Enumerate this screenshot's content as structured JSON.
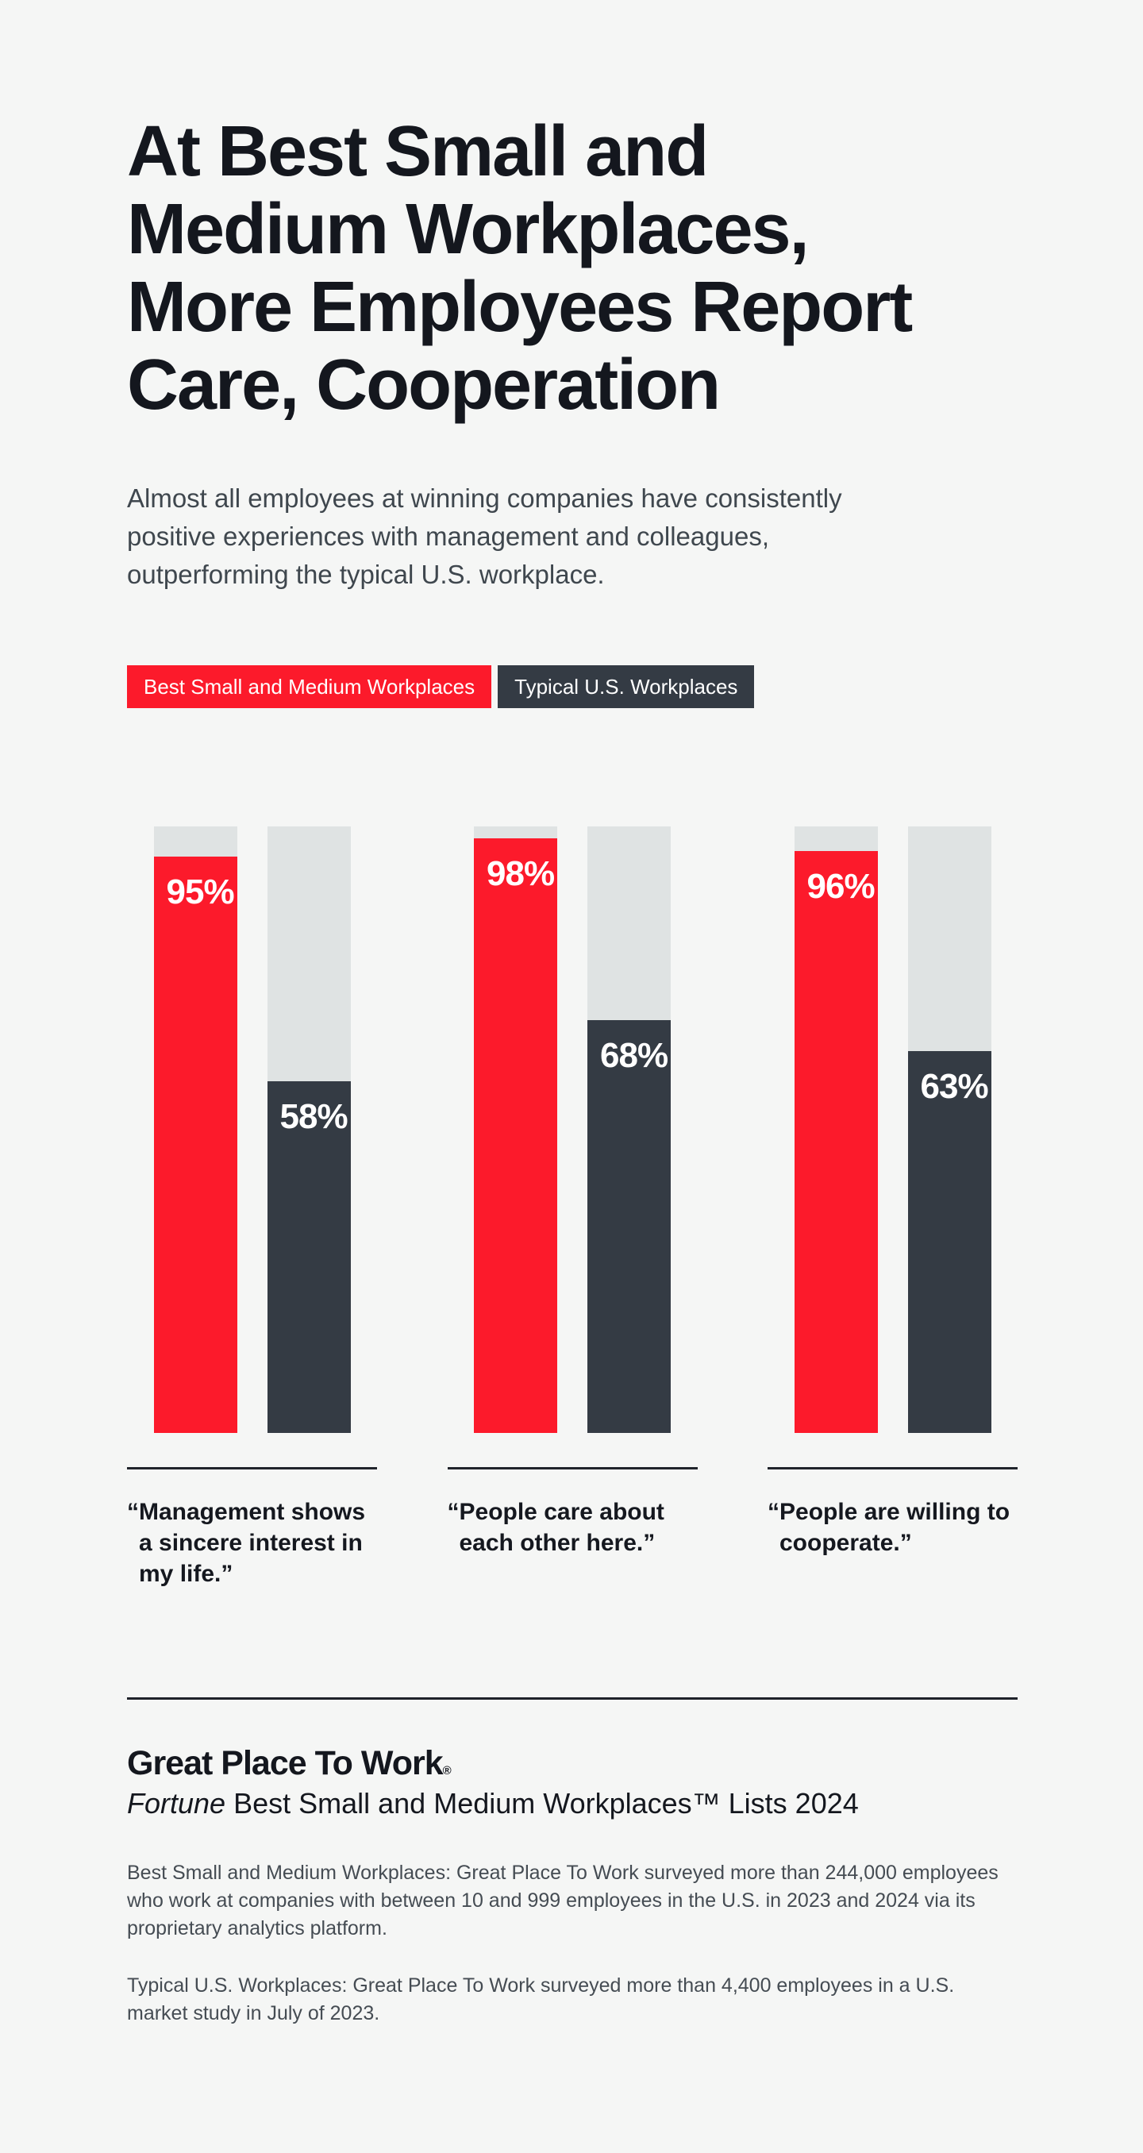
{
  "page": {
    "background": "#F5F6F5",
    "text_dark": "#14171E",
    "text_gray": "#454C53"
  },
  "header": {
    "title": "At Best Small and\nMedium Workplaces,\nMore Employees Report\nCare, Cooperation",
    "subtitle": "Almost all employees at winning companies have consistently\npositive experiences with management and colleagues,\noutperforming the typical U.S. workplace."
  },
  "legend": [
    {
      "label": "Best Small and Medium Workplaces",
      "color": "#FC1A2B"
    },
    {
      "label": "Typical U.S. Workplaces",
      "color": "#343B44"
    }
  ],
  "chart_data": {
    "type": "bar",
    "categories": [
      "“Management shows a sincere interest in my life.”",
      "“People care about each other here.”",
      "“People are willing to cooperate.”"
    ],
    "series": [
      {
        "name": "Best Small and Medium Workplaces",
        "color": "#FC1A2B",
        "values": [
          95,
          98,
          96
        ]
      },
      {
        "name": "Typical U.S. Workplaces",
        "color": "#343B44",
        "values": [
          58,
          68,
          63
        ]
      }
    ],
    "value_suffix": "%",
    "ylim": [
      0,
      100
    ],
    "grid": false,
    "legend_position": "top",
    "track_color": "#DFE3E3",
    "title": "At Best Small and Medium Workplaces, More Employees Report Care, Cooperation"
  },
  "display": {
    "wrapped_categories": [
      "“Management shows\na sincere interest in\nmy life.”",
      "“People care about\neach other here.”",
      "“People are willing to\ncooperate.”"
    ]
  },
  "footer": {
    "logo": "Great Place To Work",
    "logo_reg": "®",
    "fortune": "Fortune",
    "list_suffix": " Best Small and Medium Workplaces™ Lists 2024",
    "note1": "Best Small and Medium Workplaces: Great Place To Work surveyed more than 244,000 employees\nwho work at companies with between 10 and 999 employees in the U.S. in 2023 and 2024 via its\nproprietary analytics platform.",
    "note2": "Typical U.S. Workplaces: Great Place To Work surveyed more than 4,400 employees in a U.S.\nmarket study in July of 2023."
  }
}
